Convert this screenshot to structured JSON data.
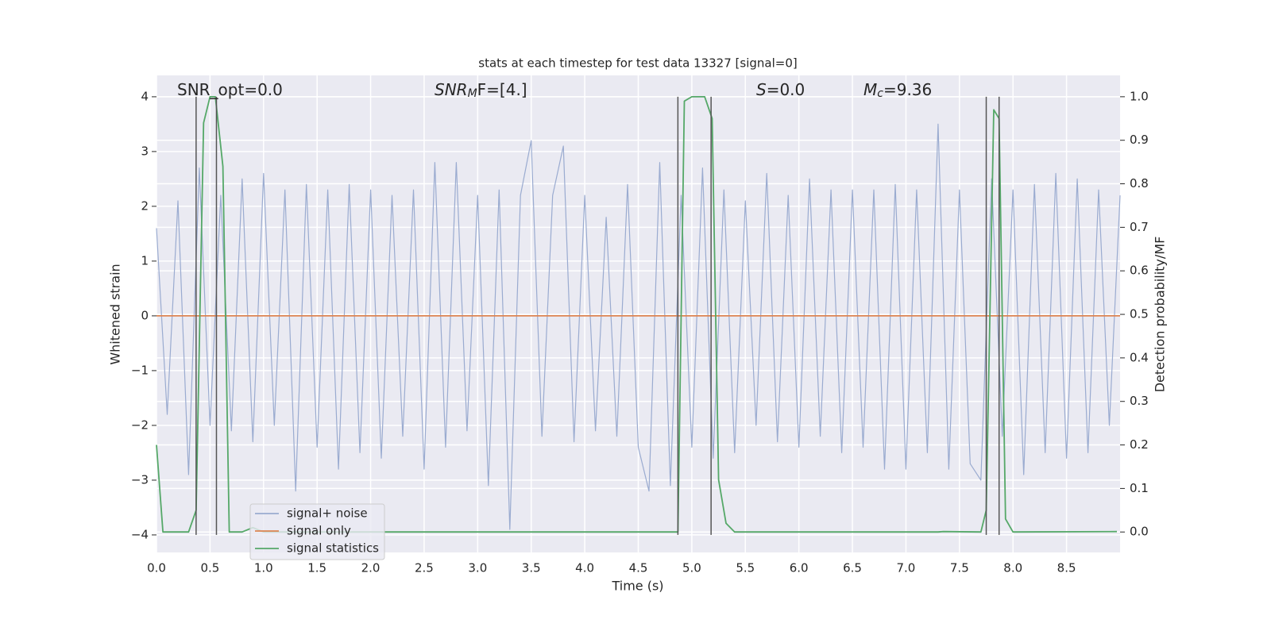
{
  "chart_data": {
    "type": "line",
    "title": "stats at each timestep for test data 13327 [signal=0]",
    "xlabel": "Time (s)",
    "ylabel": "Whitened strain",
    "y2label": "Detection probability/MF",
    "xlim": [
      0,
      9.0
    ],
    "ylim": [
      -4.32,
      4.39
    ],
    "y2lim": [
      -0.047,
      1.049
    ],
    "xticks": [
      {
        "value": 0,
        "label": "0.0"
      },
      0.5,
      {
        "value": 1,
        "label": "1.0"
      },
      1.5,
      {
        "value": 2,
        "label": "2.0"
      },
      2.5,
      {
        "value": 3,
        "label": "3.0"
      },
      3.5,
      {
        "value": 4,
        "label": "4.0"
      },
      4.5,
      {
        "value": 5,
        "label": "5.0"
      },
      5.5,
      {
        "value": 6,
        "label": "6.0"
      },
      6.5,
      {
        "value": 7,
        "label": "7.0"
      },
      7.5,
      {
        "value": 8,
        "label": "8.0"
      },
      8.5
    ],
    "yticks": [
      {
        "value": -4,
        "label": "−4"
      },
      {
        "value": -3,
        "label": "−3"
      },
      {
        "value": -2,
        "label": "−2"
      },
      {
        "value": -1,
        "label": "−1"
      },
      0,
      1,
      2,
      3,
      4
    ],
    "y2ticks": [
      {
        "value": 0,
        "label": "0.0"
      },
      0.1,
      0.2,
      0.3,
      0.4,
      0.5,
      0.6,
      0.7,
      0.8,
      0.9,
      {
        "value": 1,
        "label": "1.0"
      }
    ],
    "grid": true,
    "legend": "lower left",
    "series": [
      {
        "name": "signal+ noise",
        "color": "#9aabd0",
        "x": [
          0.0,
          0.1,
          0.2,
          0.3,
          0.4,
          0.5,
          0.6,
          0.7,
          0.8,
          0.9,
          1.0,
          1.1,
          1.2,
          1.3,
          1.4,
          1.5,
          1.6,
          1.7,
          1.8,
          1.9,
          2.0,
          2.1,
          2.2,
          2.3,
          2.4,
          2.5,
          2.6,
          2.7,
          2.8,
          2.9,
          3.0,
          3.1,
          3.2,
          3.3,
          3.4,
          3.5,
          3.6,
          3.7,
          3.8,
          3.9,
          4.0,
          4.1,
          4.2,
          4.3,
          4.4,
          4.5,
          4.6,
          4.7,
          4.8,
          4.9,
          5.0,
          5.1,
          5.2,
          5.3,
          5.4,
          5.5,
          5.6,
          5.7,
          5.8,
          5.9,
          6.0,
          6.1,
          6.2,
          6.3,
          6.4,
          6.5,
          6.6,
          6.7,
          6.8,
          6.9,
          7.0,
          7.1,
          7.2,
          7.3,
          7.4,
          7.5,
          7.6,
          7.7,
          7.8,
          7.9,
          8.0,
          8.1,
          8.2,
          8.3,
          8.4,
          8.5,
          8.6,
          8.7,
          8.8,
          8.9,
          9.0
        ],
        "values": [
          1.6,
          -1.8,
          2.1,
          -2.9,
          2.7,
          -2.0,
          2.2,
          -2.1,
          2.5,
          -2.3,
          2.6,
          -2.0,
          2.3,
          -3.2,
          2.4,
          -2.4,
          2.3,
          -2.8,
          2.4,
          -2.5,
          2.3,
          -2.6,
          2.2,
          -2.2,
          2.3,
          -2.8,
          2.8,
          -2.4,
          2.8,
          -2.1,
          2.2,
          -3.1,
          2.3,
          -3.9,
          2.2,
          3.2,
          -2.2,
          2.2,
          3.1,
          -2.3,
          2.2,
          -2.1,
          1.8,
          -2.2,
          2.4,
          -2.4,
          -3.2,
          2.8,
          -3.1,
          2.2,
          -2.4,
          2.7,
          -2.6,
          2.3,
          -2.5,
          2.1,
          -2.0,
          2.6,
          -2.3,
          2.2,
          -2.4,
          2.5,
          -2.2,
          2.3,
          -2.5,
          2.3,
          -2.4,
          2.3,
          -2.8,
          2.4,
          -2.8,
          2.3,
          -2.5,
          3.5,
          -2.8,
          2.3,
          -2.7,
          -3.0,
          2.5,
          -2.2,
          2.3,
          -2.9,
          2.4,
          -2.5,
          2.6,
          -2.6,
          2.5,
          -2.5,
          2.3,
          -2.0,
          2.2
        ]
      },
      {
        "name": "signal only",
        "color": "#dd8452",
        "x": [
          0.0,
          9.0
        ],
        "values": [
          0,
          0
        ]
      },
      {
        "name": "signal statistics",
        "color": "#55a868",
        "axis": "y2",
        "x": [
          0.0,
          0.06,
          0.3,
          0.37,
          0.44,
          0.5,
          0.55,
          0.62,
          0.68,
          0.8,
          0.9,
          1.0,
          4.87,
          4.93,
          5.0,
          5.12,
          5.19,
          5.25,
          5.32,
          5.4,
          7.3,
          7.35,
          7.7,
          7.75,
          7.82,
          7.87,
          7.93,
          8.0,
          8.97
        ],
        "values": [
          0.2,
          0.0,
          0.0,
          0.05,
          0.94,
          1.0,
          1.0,
          0.84,
          0.0,
          0.0,
          0.01,
          0.0,
          0.0,
          0.99,
          1.0,
          1.0,
          0.95,
          0.12,
          0.02,
          0.0,
          0.0,
          0.001,
          0.0,
          0.05,
          0.97,
          0.95,
          0.03,
          0.0,
          0.001
        ]
      }
    ],
    "vlines": {
      "x": [
        0.37,
        0.56,
        4.87,
        5.18,
        7.75,
        7.87
      ],
      "ymin": -4,
      "ymax": 4,
      "color": "#555555"
    },
    "annotations": [
      {
        "text": "SNR_opt=0.0"
      },
      {
        "text": "SNR",
        "sub": "M",
        "after": "F=[4.]"
      },
      {
        "text": "S",
        "after": "=0.0"
      },
      {
        "text": "M",
        "sub": "c",
        "after": "=9.36"
      }
    ]
  }
}
